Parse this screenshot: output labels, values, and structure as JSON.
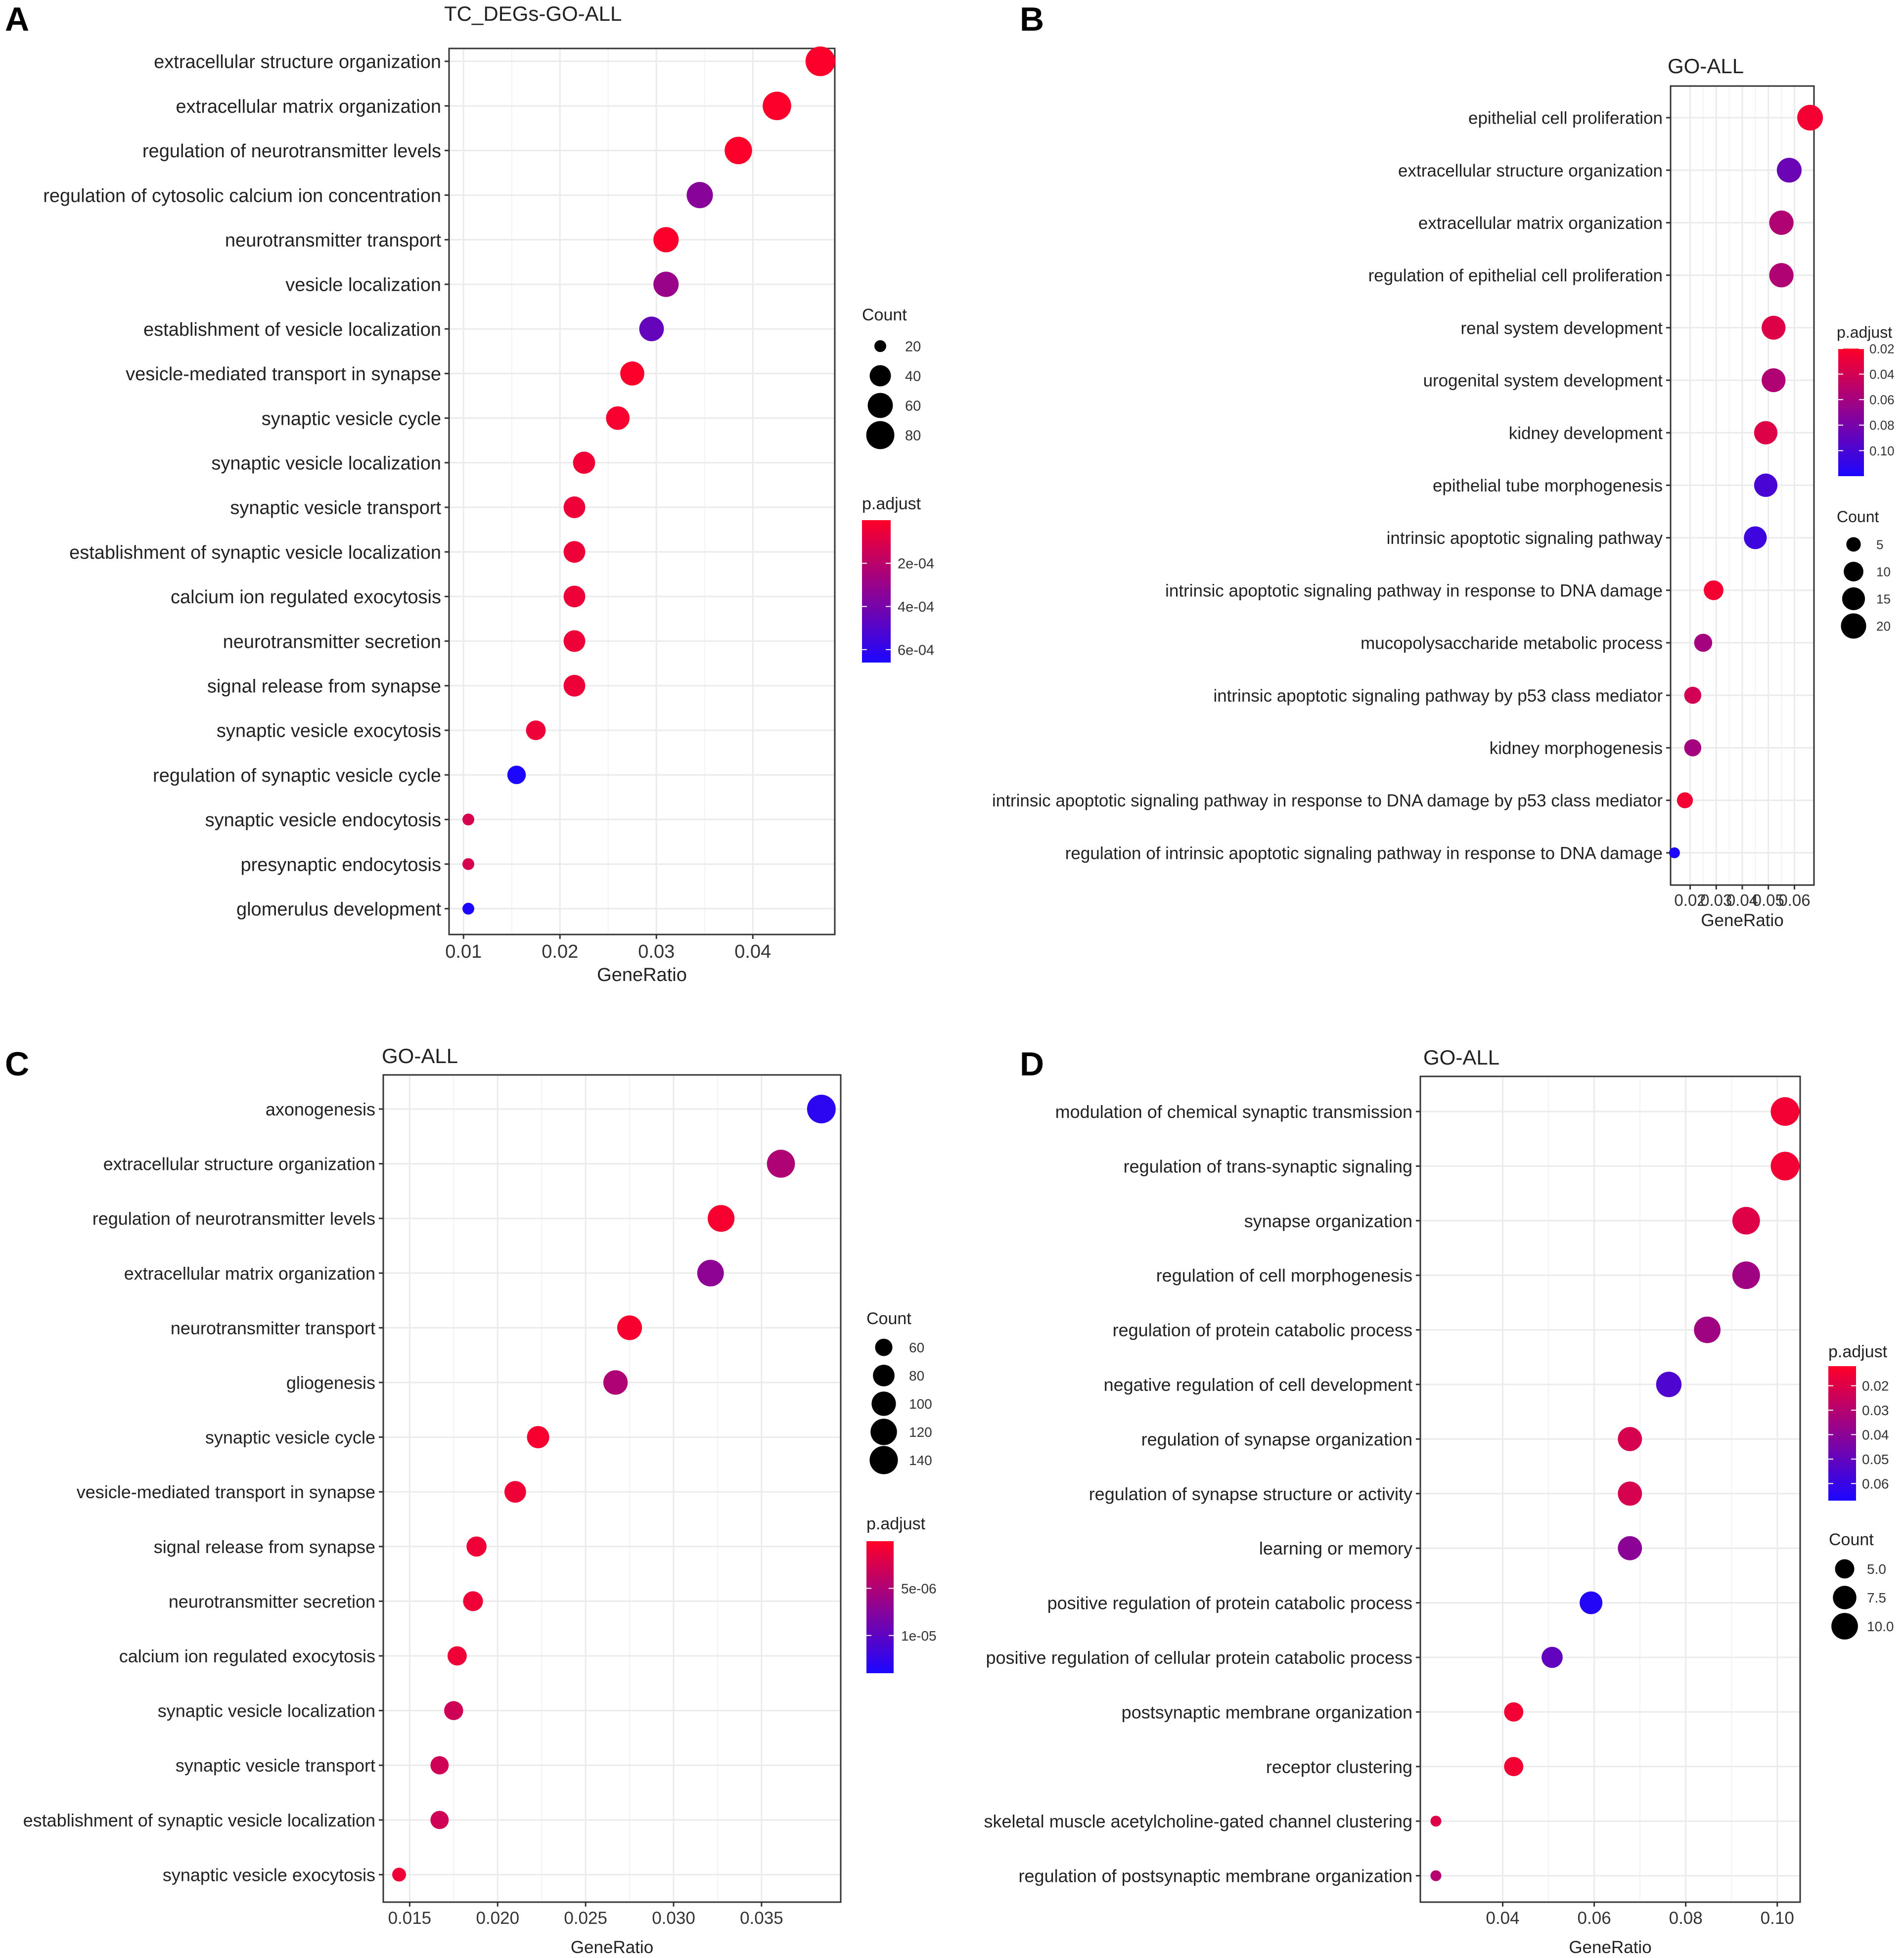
{
  "chart_data": [
    {
      "panel": "A",
      "type": "scatter",
      "title": "TC_DEGs-GO-ALL",
      "xlabel": "GeneRatio",
      "xlim": [
        0.0085,
        0.0485
      ],
      "xticks": [
        0.01,
        0.02,
        0.03,
        0.04
      ],
      "xtick_labels": [
        "0.01",
        "0.02",
        "0.03",
        "0.04"
      ],
      "grid": true,
      "count_legend": {
        "title": "Count",
        "values": [
          20,
          40,
          60,
          80
        ],
        "labels": [
          "20",
          "40",
          "60",
          "80"
        ]
      },
      "color_legend": {
        "title": "p.adjust",
        "min": 0,
        "max": 0.00066,
        "ticks": [
          0.0002,
          0.0004,
          0.0006
        ],
        "labels": [
          "2e-04",
          "4e-04",
          "6e-04"
        ]
      },
      "terms": [
        "extracellular structure organization",
        "extracellular matrix organization",
        "regulation of neurotransmitter levels",
        "regulation of cytosolic calcium ion concentration",
        "neurotransmitter transport",
        "vesicle localization",
        "establishment of vesicle localization",
        "vesicle-mediated transport in synapse",
        "synaptic vesicle cycle",
        "synaptic vesicle localization",
        "synaptic vesicle transport",
        "establishment of synaptic vesicle localization",
        "calcium ion regulated exocytosis",
        "neurotransmitter secretion",
        "signal release from synapse",
        "synaptic vesicle exocytosis",
        "regulation of synaptic vesicle cycle",
        "synaptic vesicle endocytosis",
        "presynaptic endocytosis",
        "glomerulus development"
      ],
      "x": [
        0.047,
        0.0425,
        0.0385,
        0.0345,
        0.031,
        0.031,
        0.0295,
        0.0275,
        0.026,
        0.0225,
        0.0215,
        0.0215,
        0.0215,
        0.0215,
        0.0215,
        0.0175,
        0.0155,
        0.0105,
        0.0105,
        0.0105
      ],
      "count": [
        92,
        83,
        75,
        67,
        61,
        61,
        57,
        54,
        51,
        44,
        42,
        42,
        42,
        42,
        42,
        34,
        30,
        20,
        20,
        20
      ],
      "p_adjust": [
        1e-05,
        1e-05,
        1e-05,
        0.00035,
        1e-05,
        0.0003,
        0.00045,
        1e-05,
        2e-05,
        4e-05,
        5e-05,
        5e-05,
        5e-05,
        5e-05,
        5e-05,
        5e-05,
        0.00066,
        0.00012,
        0.00012,
        0.00066
      ]
    },
    {
      "panel": "B",
      "type": "scatter",
      "title": "GO-ALL",
      "xlabel": "GeneRatio",
      "xlim": [
        0.0125,
        0.0675
      ],
      "xticks": [
        0.02,
        0.03,
        0.04,
        0.05,
        0.06
      ],
      "xtick_labels": [
        "0.02",
        "0.03",
        "0.04",
        "0.05",
        "0.06"
      ],
      "grid": true,
      "count_legend": {
        "title": "Count",
        "values": [
          5,
          10,
          15,
          20
        ],
        "labels": [
          "5",
          "10",
          "15",
          "20"
        ]
      },
      "color_legend": {
        "title": "p.adjust",
        "min": 0.02,
        "max": 0.12,
        "ticks": [
          0.02,
          0.04,
          0.06,
          0.08,
          0.1
        ],
        "labels": [
          "0.02",
          "0.04",
          "0.06",
          "0.08",
          "0.10"
        ]
      },
      "terms": [
        "epithelial cell proliferation",
        "extracellular structure organization",
        "extracellular matrix organization",
        "regulation of epithelial cell proliferation",
        "renal system development",
        "urogenital system development",
        "kidney development",
        "epithelial tube morphogenesis",
        "intrinsic apoptotic signaling pathway",
        "intrinsic apoptotic signaling pathway in response to DNA damage",
        "mucopolysaccharide metabolic process",
        "intrinsic apoptotic signaling pathway by p53 class mediator",
        "kidney morphogenesis",
        "intrinsic apoptotic signaling pathway in response to DNA damage by p53 class mediator",
        "regulation of intrinsic apoptotic signaling pathway in response to DNA damage"
      ],
      "x": [
        0.066,
        0.058,
        0.055,
        0.055,
        0.052,
        0.052,
        0.049,
        0.049,
        0.045,
        0.029,
        0.025,
        0.021,
        0.021,
        0.018,
        0.014
      ],
      "count": [
        21,
        19,
        18,
        18,
        17,
        17,
        16,
        16,
        15,
        10,
        8,
        7,
        7,
        6,
        4
      ],
      "p_adjust": [
        0.025,
        0.085,
        0.055,
        0.055,
        0.035,
        0.055,
        0.035,
        0.1,
        0.105,
        0.025,
        0.06,
        0.04,
        0.06,
        0.025,
        0.12
      ]
    },
    {
      "panel": "C",
      "type": "scatter",
      "title": "GO-ALL",
      "xlabel": "GeneRatio",
      "xlim": [
        0.0135,
        0.0395
      ],
      "xticks": [
        0.015,
        0.02,
        0.025,
        0.03,
        0.035
      ],
      "xtick_labels": [
        "0.015",
        "0.020",
        "0.025",
        "0.030",
        "0.035"
      ],
      "grid": true,
      "count_legend": {
        "title": "Count",
        "values": [
          60,
          80,
          100,
          120,
          140
        ],
        "labels": [
          "60",
          "80",
          "100",
          "120",
          "140"
        ]
      },
      "color_legend": {
        "title": "p.adjust",
        "min": 0,
        "max": 1.4e-05,
        "ticks": [
          5e-06,
          1e-05
        ],
        "labels": [
          "5e-06",
          "1e-05"
        ]
      },
      "terms": [
        "axonogenesis",
        "extracellular structure organization",
        "regulation of neurotransmitter levels",
        "extracellular matrix organization",
        "neurotransmitter transport",
        "gliogenesis",
        "synaptic vesicle cycle",
        "vesicle-mediated transport in synapse",
        "signal release from synapse",
        "neurotransmitter secretion",
        "calcium ion regulated exocytosis",
        "synaptic vesicle localization",
        "synaptic vesicle transport",
        "establishment of synaptic vesicle localization",
        "synaptic vesicle exocytosis"
      ],
      "x": [
        0.0384,
        0.0361,
        0.0327,
        0.0321,
        0.0275,
        0.0267,
        0.0223,
        0.021,
        0.0188,
        0.0186,
        0.0177,
        0.0175,
        0.0167,
        0.0167,
        0.0144
      ],
      "count": [
        145,
        137,
        124,
        122,
        104,
        101,
        84,
        80,
        71,
        70,
        67,
        66,
        63,
        63,
        55
      ],
      "p_adjust": [
        1.3e-05,
        5e-06,
        5e-07,
        7e-06,
        5e-07,
        5e-06,
        5e-07,
        1e-06,
        1e-06,
        1e-06,
        1e-06,
        3e-06,
        3e-06,
        3e-06,
        1e-06
      ]
    },
    {
      "panel": "D",
      "type": "scatter",
      "title": "GO-ALL",
      "xlabel": "GeneRatio",
      "xlim": [
        0.022,
        0.105
      ],
      "xticks": [
        0.04,
        0.06,
        0.08,
        0.1
      ],
      "xtick_labels": [
        "0.04",
        "0.06",
        "0.08",
        "0.10"
      ],
      "grid": true,
      "count_legend": {
        "title": "Count",
        "values": [
          5,
          7.5,
          10
        ],
        "labels": [
          "5.0",
          "7.5",
          "10.0"
        ]
      },
      "color_legend": {
        "title": "p.adjust",
        "min": 0.012,
        "max": 0.067,
        "ticks": [
          0.02,
          0.03,
          0.04,
          0.05,
          0.06
        ],
        "labels": [
          "0.02",
          "0.03",
          "0.04",
          "0.05",
          "0.06"
        ]
      },
      "terms": [
        "modulation of chemical synaptic transmission",
        "regulation of trans-synaptic signaling",
        "synapse organization",
        "regulation of cell morphogenesis",
        "regulation of protein catabolic process",
        "negative regulation of cell development",
        "regulation of synapse organization",
        "regulation of synapse structure or activity",
        "learning or memory",
        "positive regulation of protein catabolic process",
        "positive regulation of cellular protein catabolic process",
        "postsynaptic membrane organization",
        "receptor clustering",
        "skeletal muscle acetylcholine-gated channel clustering",
        "regulation of postsynaptic membrane organization"
      ],
      "x": [
        0.1017,
        0.1017,
        0.0932,
        0.0932,
        0.0847,
        0.0763,
        0.0678,
        0.0678,
        0.0678,
        0.0593,
        0.0508,
        0.0424,
        0.0424,
        0.0254,
        0.0254
      ],
      "count": [
        12,
        12,
        11,
        11,
        10,
        9,
        8,
        8,
        8,
        7,
        6,
        5,
        5,
        3,
        3
      ],
      "p_adjust": [
        0.015,
        0.015,
        0.02,
        0.035,
        0.035,
        0.055,
        0.022,
        0.022,
        0.04,
        0.065,
        0.05,
        0.015,
        0.015,
        0.02,
        0.03
      ]
    }
  ]
}
